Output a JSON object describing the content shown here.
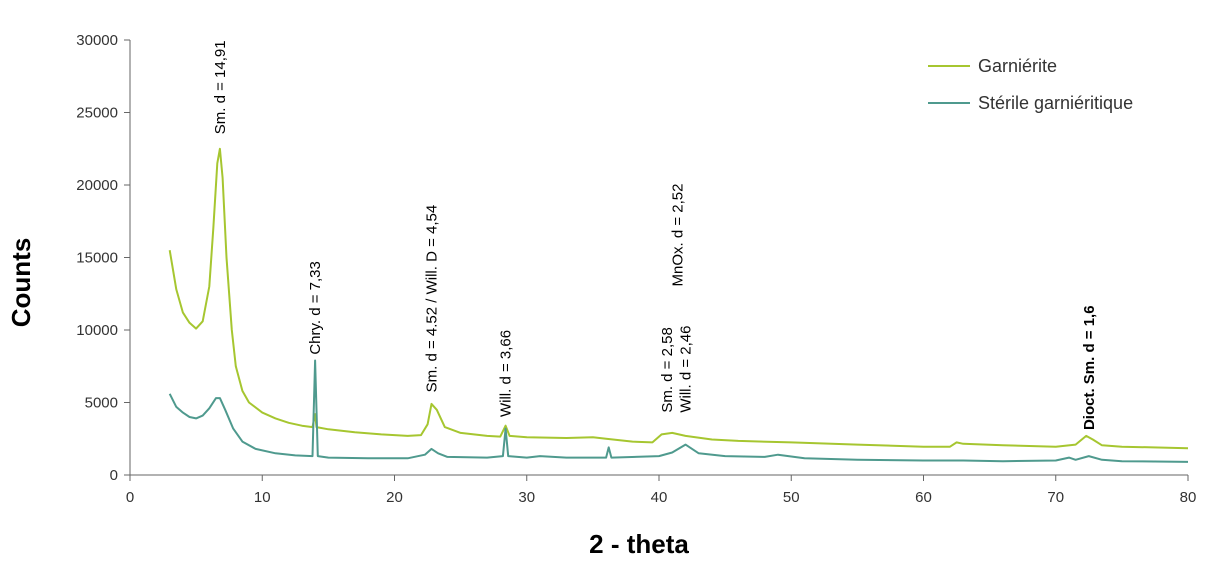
{
  "chart_data": {
    "type": "line",
    "title": "",
    "xlabel": "2 - theta",
    "ylabel": "Counts",
    "xlim": [
      0,
      80
    ],
    "ylim": [
      0,
      30000
    ],
    "xticks": [
      0,
      10,
      20,
      30,
      40,
      50,
      60,
      70,
      80
    ],
    "yticks": [
      0,
      5000,
      10000,
      15000,
      20000,
      25000,
      30000
    ],
    "grid": false,
    "legend_position": "top-right",
    "series": [
      {
        "name": "Garniérite",
        "color": "#a6c630",
        "points": [
          [
            3,
            15500
          ],
          [
            3.5,
            12800
          ],
          [
            4,
            11200
          ],
          [
            4.5,
            10500
          ],
          [
            5,
            10100
          ],
          [
            5.5,
            10600
          ],
          [
            6,
            13000
          ],
          [
            6.3,
            17000
          ],
          [
            6.6,
            21500
          ],
          [
            6.8,
            22500
          ],
          [
            7.0,
            20500
          ],
          [
            7.3,
            15000
          ],
          [
            7.7,
            10000
          ],
          [
            8,
            7500
          ],
          [
            8.5,
            5800
          ],
          [
            9,
            5000
          ],
          [
            10,
            4300
          ],
          [
            11,
            3900
          ],
          [
            12,
            3600
          ],
          [
            13,
            3400
          ],
          [
            13.8,
            3300
          ],
          [
            14.0,
            4200
          ],
          [
            14.1,
            3300
          ],
          [
            15,
            3150
          ],
          [
            17,
            2950
          ],
          [
            19,
            2800
          ],
          [
            21,
            2700
          ],
          [
            22,
            2750
          ],
          [
            22.5,
            3500
          ],
          [
            22.8,
            4900
          ],
          [
            23.2,
            4500
          ],
          [
            23.8,
            3300
          ],
          [
            25,
            2900
          ],
          [
            27,
            2700
          ],
          [
            28,
            2650
          ],
          [
            28.4,
            3400
          ],
          [
            28.7,
            2700
          ],
          [
            30,
            2600
          ],
          [
            33,
            2550
          ],
          [
            35,
            2600
          ],
          [
            36,
            2500
          ],
          [
            38,
            2300
          ],
          [
            39.5,
            2250
          ],
          [
            40.2,
            2800
          ],
          [
            41,
            2900
          ],
          [
            42,
            2700
          ],
          [
            44,
            2450
          ],
          [
            46,
            2350
          ],
          [
            50,
            2250
          ],
          [
            55,
            2100
          ],
          [
            60,
            1950
          ],
          [
            62,
            1950
          ],
          [
            62.5,
            2250
          ],
          [
            63,
            2150
          ],
          [
            66,
            2050
          ],
          [
            70,
            1950
          ],
          [
            71.5,
            2100
          ],
          [
            72.3,
            2700
          ],
          [
            72.8,
            2450
          ],
          [
            73.5,
            2050
          ],
          [
            75,
            1950
          ],
          [
            80,
            1850
          ]
        ]
      },
      {
        "name": "Stérile garniéritique",
        "color": "#4f9a8e",
        "points": [
          [
            3,
            5600
          ],
          [
            3.5,
            4700
          ],
          [
            4,
            4300
          ],
          [
            4.5,
            4000
          ],
          [
            5,
            3900
          ],
          [
            5.5,
            4100
          ],
          [
            6,
            4600
          ],
          [
            6.5,
            5300
          ],
          [
            6.8,
            5300
          ],
          [
            7.2,
            4500
          ],
          [
            7.8,
            3200
          ],
          [
            8.5,
            2300
          ],
          [
            9.5,
            1800
          ],
          [
            11,
            1500
          ],
          [
            12.5,
            1350
          ],
          [
            13.8,
            1300
          ],
          [
            14.0,
            7900
          ],
          [
            14.2,
            1300
          ],
          [
            15,
            1200
          ],
          [
            18,
            1150
          ],
          [
            21,
            1150
          ],
          [
            22.3,
            1400
          ],
          [
            22.8,
            1800
          ],
          [
            23.3,
            1500
          ],
          [
            24,
            1250
          ],
          [
            27,
            1200
          ],
          [
            28.2,
            1300
          ],
          [
            28.4,
            3200
          ],
          [
            28.6,
            1300
          ],
          [
            30,
            1200
          ],
          [
            31,
            1300
          ],
          [
            33,
            1200
          ],
          [
            36,
            1200
          ],
          [
            36.2,
            1900
          ],
          [
            36.4,
            1200
          ],
          [
            40,
            1300
          ],
          [
            41,
            1550
          ],
          [
            42,
            2100
          ],
          [
            43,
            1500
          ],
          [
            45,
            1300
          ],
          [
            48,
            1250
          ],
          [
            49,
            1400
          ],
          [
            51,
            1150
          ],
          [
            55,
            1050
          ],
          [
            60,
            1000
          ],
          [
            63,
            1000
          ],
          [
            66,
            950
          ],
          [
            70,
            1000
          ],
          [
            71,
            1200
          ],
          [
            71.5,
            1050
          ],
          [
            72.5,
            1300
          ],
          [
            73.5,
            1050
          ],
          [
            75,
            950
          ],
          [
            80,
            900
          ]
        ]
      }
    ],
    "annotations": [
      {
        "text": "Sm. d = 14,91",
        "x": 6.8,
        "y": 23500,
        "bold": false
      },
      {
        "text": "Chry. d = 7,33",
        "x": 14.0,
        "y": 8300,
        "bold": false
      },
      {
        "text": "Sm. d = 4.52 / Will. D = 4,54",
        "x": 22.8,
        "y": 5700,
        "bold": false
      },
      {
        "text": "Will. d = 3,66",
        "x": 28.4,
        "y": 4000,
        "bold": false
      },
      {
        "text": "Sm. d = 2,58",
        "x": 40.6,
        "y": 4300,
        "bold": false
      },
      {
        "text": "Will. d = 2,46",
        "x": 42.0,
        "y": 4300,
        "bold": false
      },
      {
        "text": "MnOx. d = 2,52",
        "x": 41.4,
        "y": 13000,
        "bold": false
      },
      {
        "text": "Dioct. Sm. d = 1,6",
        "x": 72.5,
        "y": 3100,
        "bold": true
      }
    ]
  }
}
